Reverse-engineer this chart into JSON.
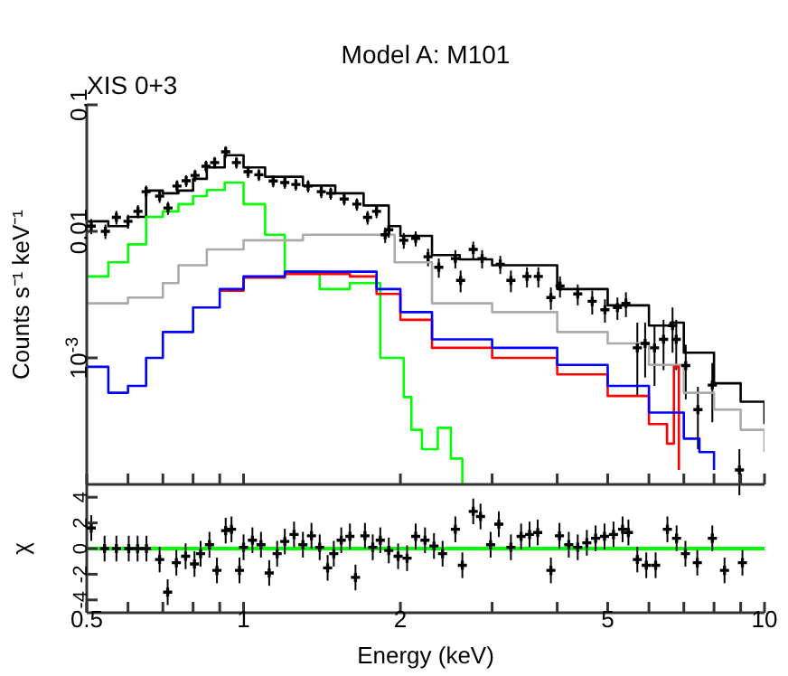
{
  "chart_data": [
    {
      "type": "scatter",
      "title": "Model A: M101",
      "annotations": [
        "XIS 0+3"
      ],
      "ylabel": "Counts s⁻¹ keV⁻¹",
      "log": "xy",
      "grid": false,
      "tick_labels": "y",
      "xlim": [
        0.5,
        10
      ],
      "xticks": [
        0.5,
        {
          "value": 0.6,
          "label": null
        },
        {
          "value": 0.7,
          "label": null
        },
        {
          "value": 0.8,
          "label": null
        },
        {
          "value": 0.9,
          "label": null
        },
        1,
        2,
        {
          "value": 3,
          "label": null
        },
        {
          "value": 4,
          "label": null
        },
        5,
        {
          "value": 6,
          "label": null
        },
        {
          "value": 7,
          "label": null
        },
        {
          "value": 8,
          "label": null
        },
        {
          "value": 9,
          "label": null
        },
        10
      ],
      "ylim": [
        0.0001,
        0.1
      ],
      "yticks": [
        {
          "value": 0.001,
          "label": "10$^{-3}$"
        },
        0.01,
        0.1
      ],
      "series": [
        {
          "color": "#000000",
          "marker": "cross",
          "x": [
            0.51,
            0.543,
            0.57,
            0.6,
            0.627,
            0.65,
            0.69,
            0.716,
            0.745,
            0.776,
            0.807,
            0.847,
            0.88,
            0.924,
            0.969,
            1.02,
            1.07,
            1.14,
            1.2,
            1.26,
            1.33,
            1.41,
            1.47,
            1.56,
            1.65,
            1.73,
            1.8,
            1.87,
            1.9,
            2.03,
            2.14,
            2.26,
            2.37,
            2.55,
            2.61,
            2.76,
            2.87,
            3.11,
            3.26,
            3.5,
            3.68,
            3.89,
            4.05,
            4.38,
            4.67,
            4.94,
            5.22,
            5.42,
            5.7,
            5.9,
            6.15,
            6.4,
            6.66,
            6.77,
            7.06,
            7.45,
            7.94,
            8.95
          ],
          "values": [
            0.011,
            0.01,
            0.0129,
            0.012,
            0.0144,
            0.0206,
            0.019,
            0.0153,
            0.0228,
            0.0251,
            0.0277,
            0.0327,
            0.035,
            0.0425,
            0.035,
            0.0296,
            0.028,
            0.025,
            0.0243,
            0.0235,
            0.0228,
            0.0206,
            0.02,
            0.018,
            0.0164,
            0.0129,
            0.0144,
            0.0094,
            0.0103,
            0.0085,
            0.0088,
            0.0063,
            0.0052,
            0.0061,
            0.0041,
            0.0072,
            0.0061,
            0.0055,
            0.0041,
            0.0044,
            0.0044,
            0.003,
            0.0037,
            0.0032,
            0.0028,
            0.0024,
            0.0025,
            0.0027,
            0.0012,
            0.0013,
            0.0012,
            0.0014,
            0.0018,
            0.0014,
            0.00087,
            0.00039,
            0.00061,
            0.00013
          ],
          "errors": [
            0.0015,
            0.0013,
            0.0016,
            0.0015,
            0.0017,
            0.0024,
            0.0022,
            0.0018,
            0.0025,
            0.0027,
            0.003,
            0.0035,
            0.0037,
            0.0045,
            0.0037,
            0.0032,
            0.003,
            0.0027,
            0.0026,
            0.0025,
            0.0025,
            0.0023,
            0.0022,
            0.002,
            0.0018,
            0.0016,
            0.0017,
            0.0013,
            0.0014,
            0.0012,
            0.0012,
            0.001,
            0.0009,
            0.001,
            0.0008,
            0.0011,
            0.001,
            0.0009,
            0.0008,
            0.0008,
            0.0008,
            0.0006,
            0.0007,
            0.0006,
            0.0006,
            0.0005,
            0.0005,
            0.0006,
            0.0007,
            0.0006,
            0.0006,
            0.0006,
            0.0007,
            0.0006,
            0.0004,
            0.0002,
            0.0003,
            6e-05
          ]
        },
        {
          "type": "step",
          "color": "#000000",
          "x": [
            0.5,
            0.55,
            0.6,
            0.65,
            0.7,
            0.75,
            0.8,
            0.85,
            0.92,
            1.0,
            1.1,
            1.3,
            1.5,
            1.7,
            1.9,
            2.0,
            2.3,
            2.6,
            3,
            4,
            5,
            6,
            6.6,
            7,
            8,
            9,
            10
          ],
          "values": [
            0.012,
            0.011,
            0.013,
            0.021,
            0.02,
            0.021,
            0.026,
            0.032,
            0.04,
            0.032,
            0.027,
            0.023,
            0.02,
            0.016,
            0.011,
            0.0092,
            0.0065,
            0.006,
            0.0054,
            0.0035,
            0.0026,
            0.0018,
            0.0019,
            0.0011,
            0.00063,
            0.00045,
            0.0003
          ]
        },
        {
          "type": "step",
          "color": "#00ff00",
          "x": [
            0.5,
            0.55,
            0.6,
            0.65,
            0.7,
            0.75,
            0.8,
            0.85,
            0.92,
            1.0,
            1.1,
            1.2,
            1.4,
            1.6,
            1.83,
            2.03,
            2.1,
            2.2,
            2.36,
            2.5,
            2.63
          ],
          "values": [
            0.0044,
            0.0057,
            0.0079,
            0.013,
            0.0144,
            0.0164,
            0.019,
            0.0212,
            0.0243,
            0.0164,
            0.0094,
            0.0048,
            0.0035,
            0.0039,
            0.001,
            0.00049,
            0.00027,
            0.00019,
            0.00028,
            0.00016,
            0.0001
          ]
        },
        {
          "type": "step",
          "color": "#aaaaaa",
          "x": [
            0.5,
            0.6,
            0.7,
            0.75,
            0.85,
            1.0,
            1.3,
            1.8,
            1.95,
            2.3,
            3,
            4,
            5,
            6,
            7,
            8,
            9,
            10
          ],
          "values": [
            0.0027,
            0.003,
            0.0039,
            0.0054,
            0.0072,
            0.0085,
            0.0094,
            0.0094,
            0.0057,
            0.0027,
            0.0023,
            0.0016,
            0.0013,
            0.00088,
            0.00053,
            0.00039,
            0.00027,
            0.00018
          ]
        },
        {
          "type": "step",
          "color": "#ff0000",
          "x": [
            0.9,
            1.0,
            1.2,
            1.6,
            1.8,
            2.0,
            2.3,
            3,
            4,
            5,
            6,
            6.5,
            6.7,
            6.85
          ],
          "values": [
            0.0034,
            0.0043,
            0.0046,
            0.0044,
            0.0032,
            0.002,
            0.0012,
            0.001,
            0.00074,
            0.0005,
            0.0003,
            0.00021,
            0.00085,
            0.00013
          ]
        },
        {
          "type": "step",
          "color": "#0000ff",
          "x": [
            0.5,
            0.55,
            0.6,
            0.65,
            0.7,
            0.8,
            0.9,
            1.0,
            1.2,
            1.6,
            1.8,
            2.0,
            2.3,
            3,
            4,
            5,
            6,
            7,
            7.5,
            8
          ],
          "values": [
            0.00085,
            0.00053,
            0.0006,
            0.001,
            0.0016,
            0.0025,
            0.0035,
            0.0044,
            0.0048,
            0.0048,
            0.0035,
            0.0023,
            0.0014,
            0.0012,
            0.00088,
            0.0006,
            0.00037,
            0.00023,
            0.00018,
            0.00013
          ]
        }
      ]
    },
    {
      "type": "scatter",
      "xlabel": "Energy (keV)",
      "ylabel": "χ",
      "log": "x",
      "grid": false,
      "xlim": [
        0.5,
        10
      ],
      "xticks": [
        0.5,
        {
          "value": 0.6,
          "label": null
        },
        {
          "value": 0.7,
          "label": null
        },
        {
          "value": 0.8,
          "label": null
        },
        {
          "value": 0.9,
          "label": null
        },
        1,
        2,
        {
          "value": 3,
          "label": null
        },
        {
          "value": 4,
          "label": null
        },
        5,
        {
          "value": 6,
          "label": null
        },
        {
          "value": 7,
          "label": null
        },
        {
          "value": 8,
          "label": null
        },
        {
          "value": 9,
          "label": null
        },
        10
      ],
      "ylim": [
        -5,
        5
      ],
      "yticks": [
        -4,
        -2,
        0,
        2,
        4
      ],
      "ref_lines": [
        {
          "axis": "y",
          "value": 0,
          "color": "#00ff00"
        }
      ],
      "series": [
        {
          "color": "#000000",
          "marker": "cross",
          "x": [
            0.51,
            0.541,
            0.57,
            0.602,
            0.626,
            0.651,
            0.69,
            0.715,
            0.743,
            0.774,
            0.805,
            0.827,
            0.86,
            0.889,
            0.924,
            0.948,
            0.982,
            1.0,
            1.04,
            1.08,
            1.12,
            1.16,
            1.2,
            1.25,
            1.3,
            1.35,
            1.4,
            1.45,
            1.49,
            1.54,
            1.6,
            1.64,
            1.71,
            1.77,
            1.83,
            1.9,
            1.98,
            2.06,
            2.14,
            2.23,
            2.32,
            2.41,
            2.55,
            2.63,
            2.76,
            2.85,
            2.98,
            3.09,
            3.26,
            3.41,
            3.54,
            3.67,
            3.89,
            4.04,
            4.21,
            4.38,
            4.56,
            4.74,
            4.93,
            5.13,
            5.34,
            5.48,
            5.7,
            5.93,
            6.18,
            6.51,
            6.78,
            7.05,
            7.43,
            7.94,
            8.38,
            9.07
          ],
          "values": [
            1.6,
            0,
            0,
            0,
            0,
            0,
            -0.85,
            -3.4,
            -1.1,
            -0.6,
            -1.2,
            -0.4,
            0.3,
            -1.7,
            1.4,
            1.5,
            -1.7,
            0.1,
            0.65,
            0.3,
            -1.9,
            -0.4,
            0.55,
            1.1,
            0.3,
            1.0,
            0.1,
            -1.5,
            -0.4,
            0.65,
            0.95,
            -2.25,
            1.0,
            0.1,
            0.65,
            -0.15,
            -0.6,
            -0.75,
            0.95,
            0.65,
            0.2,
            -0.4,
            1.5,
            -1.3,
            2.9,
            2.5,
            0.3,
            1.9,
            0.1,
            0.95,
            1.1,
            1.25,
            -1.7,
            1.0,
            0.3,
            0.1,
            0.45,
            0.8,
            0.95,
            1.1,
            1.5,
            1.25,
            -0.85,
            -1.3,
            -1.3,
            1.5,
            0.8,
            -0.4,
            -1.1,
            0.8,
            -1.7,
            -1.1
          ],
          "errors": [
            1,
            1,
            1,
            1,
            1,
            1,
            1,
            1,
            1,
            1,
            1,
            1,
            1,
            1,
            1,
            1,
            1,
            1,
            1,
            1,
            1,
            1,
            1,
            1,
            1,
            1,
            1,
            1,
            1,
            1,
            1,
            1,
            1,
            1,
            1,
            1,
            1,
            1,
            1,
            1,
            1,
            1,
            1,
            1,
            1,
            1,
            1,
            1,
            1,
            1,
            1,
            1,
            1,
            1,
            1,
            1,
            1,
            1,
            1,
            1,
            1,
            1,
            1,
            1,
            1,
            1,
            1,
            1,
            1,
            1,
            1,
            1
          ]
        }
      ]
    }
  ]
}
